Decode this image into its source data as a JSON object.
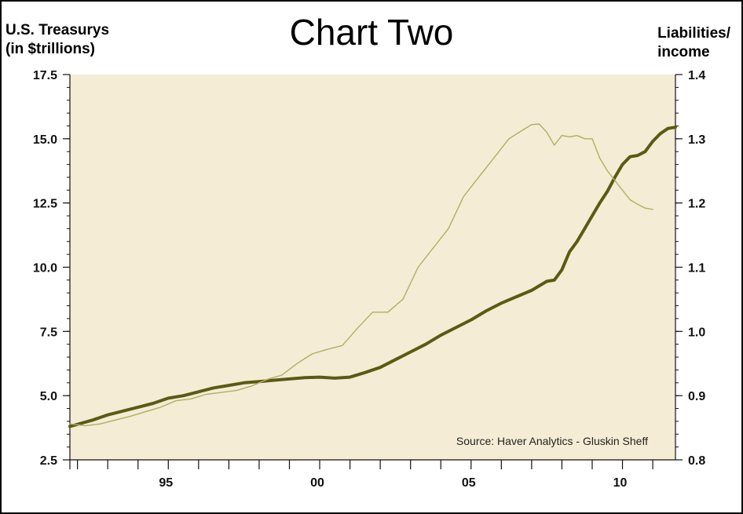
{
  "chart_data": {
    "type": "line",
    "title": "Chart Two",
    "ylabel_left": [
      "U.S. Treasurys",
      "(in $trillions)"
    ],
    "ylabel_right": [
      "Liabilities/",
      "income"
    ],
    "annotation": "Source: Haver Analytics - Gluskin Sheff",
    "x_ticks": [
      "95",
      "00",
      "05",
      "10"
    ],
    "x_tick_values": [
      1995,
      2000,
      2005,
      2010
    ],
    "xlim": [
      1991.75,
      2011.75
    ],
    "y_left_ticks": [
      "17.5",
      "15.0",
      "12.5",
      "10.0",
      "7.5",
      "5.0",
      "2.5"
    ],
    "y_left_values": [
      17.5,
      15.0,
      12.5,
      10.0,
      7.5,
      5.0,
      2.5
    ],
    "y_left_lim": [
      2.5,
      17.5
    ],
    "y_right_ticks": [
      "1.4",
      "1.3",
      "1.2",
      "1.1",
      "1.0",
      "0.9",
      "0.8"
    ],
    "y_right_values": [
      1.4,
      1.3,
      1.2,
      1.1,
      1.0,
      0.9,
      0.8
    ],
    "y_right_lim": [
      0.8,
      1.4
    ],
    "grid": false,
    "colors": {
      "plot_bg": "#f4ecd4",
      "thick_series": "#5c5a12",
      "thin_series": "#b3ad63"
    },
    "series": [
      {
        "axis": "left",
        "style": "thick",
        "x": [
          1991.75,
          1992.5,
          1993,
          1993.5,
          1994,
          1994.5,
          1995,
          1995.5,
          1996,
          1996.5,
          1997,
          1997.5,
          1998,
          1998.5,
          1999,
          1999.5,
          2000,
          2000.5,
          2001,
          2001.5,
          2002,
          2002.5,
          2003,
          2003.5,
          2004,
          2004.5,
          2005,
          2005.5,
          2006,
          2006.5,
          2007,
          2007.5,
          2007.75,
          2008,
          2008.25,
          2008.5,
          2008.75,
          2009,
          2009.25,
          2009.5,
          2009.75,
          2010,
          2010.25,
          2010.5,
          2010.75,
          2011,
          2011.25,
          2011.5,
          2011.75
        ],
        "values": [
          3.8,
          4.05,
          4.25,
          4.4,
          4.55,
          4.7,
          4.9,
          5.0,
          5.15,
          5.3,
          5.4,
          5.5,
          5.55,
          5.6,
          5.65,
          5.7,
          5.72,
          5.68,
          5.72,
          5.9,
          6.1,
          6.4,
          6.7,
          7.0,
          7.35,
          7.65,
          7.95,
          8.3,
          8.6,
          8.85,
          9.1,
          9.45,
          9.5,
          9.9,
          10.6,
          11.0,
          11.5,
          12.0,
          12.5,
          12.95,
          13.5,
          14.0,
          14.3,
          14.35,
          14.5,
          14.9,
          15.2,
          15.4,
          15.45
        ]
      },
      {
        "axis": "right",
        "style": "thin",
        "x": [
          1991.75,
          1992.25,
          1992.75,
          1993.25,
          1993.75,
          1994.25,
          1994.75,
          1995.25,
          1995.75,
          1996.25,
          1996.75,
          1997.25,
          1997.75,
          1998.25,
          1998.75,
          1999.25,
          1999.75,
          2000.25,
          2000.75,
          2001.25,
          2001.75,
          2002,
          2002.25,
          2002.75,
          2003.25,
          2003.75,
          2004.25,
          2004.75,
          2005.25,
          2005.75,
          2006.25,
          2006.75,
          2007,
          2007.25,
          2007.5,
          2007.75,
          2008,
          2008.25,
          2008.5,
          2008.75,
          2009,
          2009.25,
          2009.5,
          2009.75,
          2010,
          2010.25,
          2010.5,
          2010.75,
          2011
        ],
        "values": [
          0.856,
          0.853,
          0.856,
          0.862,
          0.868,
          0.875,
          0.882,
          0.892,
          0.895,
          0.902,
          0.905,
          0.908,
          0.915,
          0.925,
          0.932,
          0.95,
          0.965,
          0.972,
          0.978,
          1.005,
          1.03,
          1.03,
          1.03,
          1.05,
          1.1,
          1.13,
          1.16,
          1.21,
          1.24,
          1.27,
          1.3,
          1.315,
          1.322,
          1.323,
          1.31,
          1.29,
          1.305,
          1.303,
          1.305,
          1.3,
          1.3,
          1.27,
          1.25,
          1.235,
          1.22,
          1.205,
          1.198,
          1.192,
          1.19
        ]
      }
    ]
  }
}
